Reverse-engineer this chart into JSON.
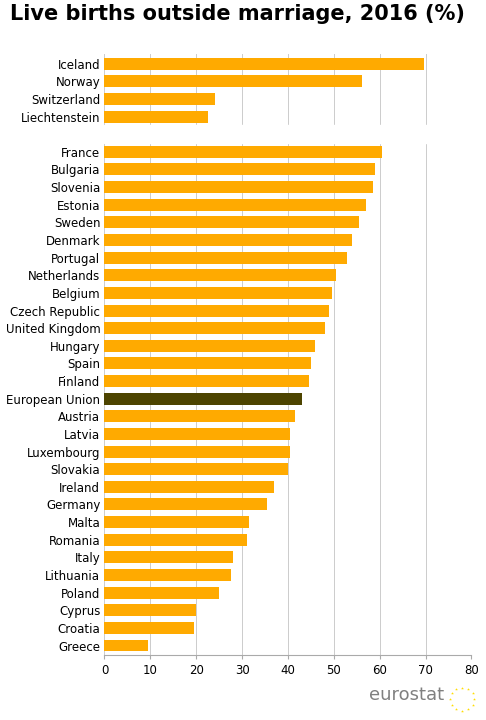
{
  "title": "Live births outside marriage, 2016 (%)",
  "categories": [
    "Iceland",
    "Norway",
    "Switzerland",
    "Liechtenstein",
    "",
    "France",
    "Bulgaria",
    "Slovenia",
    "Estonia",
    "Sweden",
    "Denmark",
    "Portugal",
    "Netherlands",
    "Belgium",
    "Czech Republic",
    "United Kingdom",
    "Hungary",
    "Spain",
    "Finland",
    "European Union",
    "Austria",
    "Latvia",
    "Luxembourg",
    "Slovakia",
    "Ireland",
    "Germany",
    "Malta",
    "Romania",
    "Italy",
    "Lithuania",
    "Poland",
    "Cyprus",
    "Croatia",
    "Greece"
  ],
  "values": [
    69.6,
    56.2,
    24.0,
    22.5,
    0,
    60.4,
    58.9,
    58.6,
    57.0,
    55.5,
    54.0,
    52.8,
    50.5,
    49.5,
    49.0,
    48.0,
    46.0,
    45.0,
    44.5,
    43.0,
    41.5,
    40.5,
    40.5,
    40.0,
    37.0,
    35.5,
    31.5,
    31.0,
    28.0,
    27.5,
    25.0,
    19.9,
    19.5,
    9.4
  ],
  "bar_colors": [
    "#FFAA00",
    "#FFAA00",
    "#FFAA00",
    "#FFAA00",
    "#FFAA00",
    "#FFAA00",
    "#FFAA00",
    "#FFAA00",
    "#FFAA00",
    "#FFAA00",
    "#FFAA00",
    "#FFAA00",
    "#FFAA00",
    "#FFAA00",
    "#FFAA00",
    "#FFAA00",
    "#FFAA00",
    "#FFAA00",
    "#FFAA00",
    "#4D4400",
    "#FFAA00",
    "#FFAA00",
    "#FFAA00",
    "#FFAA00",
    "#FFAA00",
    "#FFAA00",
    "#FFAA00",
    "#FFAA00",
    "#FFAA00",
    "#FFAA00",
    "#FFAA00",
    "#FFAA00",
    "#FFAA00",
    "#FFAA00"
  ],
  "xlim": [
    0,
    80
  ],
  "xticks": [
    0,
    10,
    20,
    30,
    40,
    50,
    60,
    70,
    80
  ],
  "title_fontsize": 15,
  "tick_fontsize": 8.5,
  "bar_height": 0.68,
  "background_color": "#ffffff",
  "grid_color": "#cccccc"
}
